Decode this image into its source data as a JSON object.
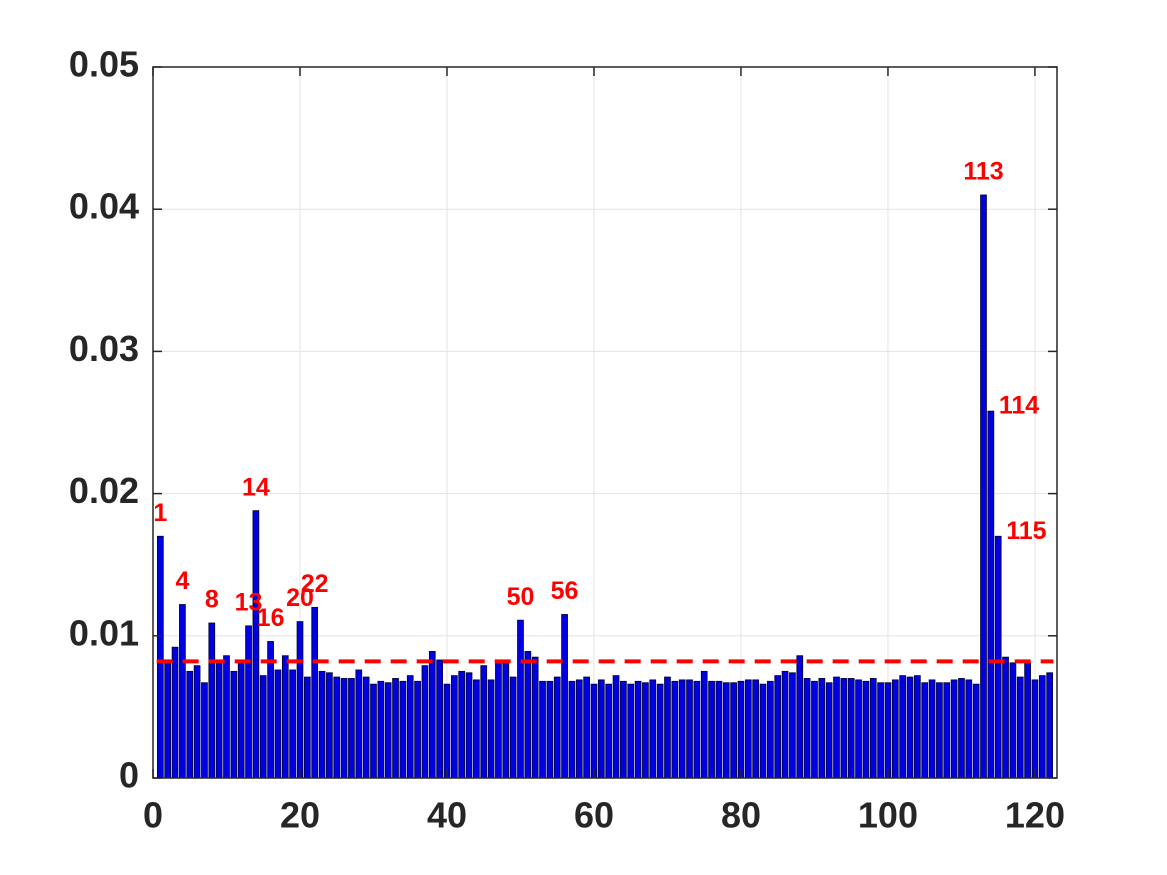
{
  "chart_data": {
    "type": "bar",
    "x": [
      1,
      2,
      3,
      4,
      5,
      6,
      7,
      8,
      9,
      10,
      11,
      12,
      13,
      14,
      15,
      16,
      17,
      18,
      19,
      20,
      21,
      22,
      23,
      24,
      25,
      26,
      27,
      28,
      29,
      30,
      31,
      32,
      33,
      34,
      35,
      36,
      37,
      38,
      39,
      40,
      41,
      42,
      43,
      44,
      45,
      46,
      47,
      48,
      49,
      50,
      51,
      52,
      53,
      54,
      55,
      56,
      57,
      58,
      59,
      60,
      61,
      62,
      63,
      64,
      65,
      66,
      67,
      68,
      69,
      70,
      71,
      72,
      73,
      74,
      75,
      76,
      77,
      78,
      79,
      80,
      81,
      82,
      83,
      84,
      85,
      86,
      87,
      88,
      89,
      90,
      91,
      92,
      93,
      94,
      95,
      96,
      97,
      98,
      99,
      100,
      101,
      102,
      103,
      104,
      105,
      106,
      107,
      108,
      109,
      110,
      111,
      112,
      113,
      114,
      115,
      116,
      117,
      118,
      119,
      120,
      121,
      122
    ],
    "values": [
      0.017,
      0.0083,
      0.0092,
      0.0122,
      0.0075,
      0.0079,
      0.0067,
      0.0109,
      0.0082,
      0.0086,
      0.0075,
      0.0083,
      0.0107,
      0.0188,
      0.0072,
      0.0096,
      0.0076,
      0.0086,
      0.0076,
      0.011,
      0.0071,
      0.012,
      0.0075,
      0.0074,
      0.0071,
      0.007,
      0.007,
      0.0076,
      0.0071,
      0.0066,
      0.0068,
      0.0067,
      0.007,
      0.0068,
      0.0072,
      0.0068,
      0.0079,
      0.0089,
      0.0083,
      0.0066,
      0.0072,
      0.0075,
      0.0074,
      0.0069,
      0.0079,
      0.0069,
      0.0081,
      0.0083,
      0.0071,
      0.0111,
      0.0089,
      0.0085,
      0.0068,
      0.0068,
      0.0071,
      0.0115,
      0.0068,
      0.0069,
      0.0071,
      0.0066,
      0.0069,
      0.0066,
      0.0072,
      0.0068,
      0.0066,
      0.0068,
      0.0067,
      0.0069,
      0.0066,
      0.0071,
      0.0068,
      0.0069,
      0.0069,
      0.0068,
      0.0075,
      0.0068,
      0.0068,
      0.0067,
      0.0067,
      0.0068,
      0.0069,
      0.0069,
      0.0066,
      0.0068,
      0.0072,
      0.0075,
      0.0074,
      0.0086,
      0.007,
      0.0068,
      0.007,
      0.0067,
      0.0071,
      0.007,
      0.007,
      0.0069,
      0.0068,
      0.007,
      0.0067,
      0.0067,
      0.0069,
      0.0072,
      0.0071,
      0.0072,
      0.0067,
      0.0069,
      0.0067,
      0.0067,
      0.0069,
      0.007,
      0.0069,
      0.0066,
      0.041,
      0.0258,
      0.017,
      0.0085,
      0.0081,
      0.0071,
      0.0081,
      0.0069,
      0.0072,
      0.0074
    ],
    "color": "#0000e0",
    "highlighted": [
      1,
      4,
      8,
      13,
      14,
      16,
      20,
      22,
      50,
      56,
      113,
      114,
      115
    ],
    "highlight_color": "#ff0000",
    "threshold": 0.0082,
    "xlim": [
      0,
      123
    ],
    "xticks": [
      0,
      20,
      40,
      60,
      80,
      100,
      120
    ],
    "ylim": [
      0,
      0.05
    ],
    "yticks": [
      0,
      0.01,
      0.02,
      0.03,
      0.04,
      0.05
    ],
    "grid": true
  }
}
